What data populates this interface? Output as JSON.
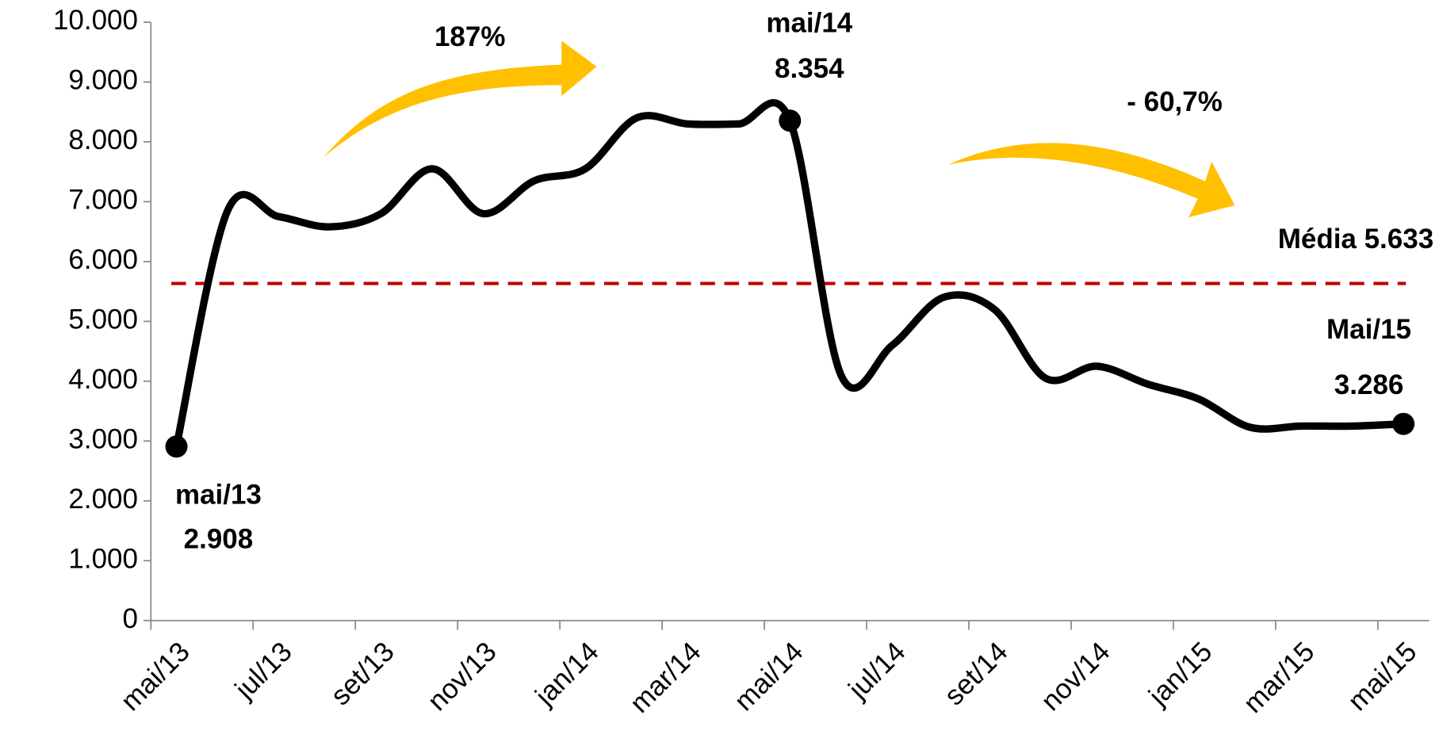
{
  "chart_data": {
    "type": "line",
    "categories": [
      "mai/13",
      null,
      "jul/13",
      null,
      "set/13",
      null,
      "nov/13",
      null,
      "jan/14",
      null,
      "mar/14",
      null,
      "mai/14",
      null,
      "jul/14",
      null,
      "set/14",
      null,
      "nov/14",
      null,
      "jan/15",
      null,
      "mar/15",
      null,
      "mai/15"
    ],
    "series": [
      {
        "color": "#000000",
        "values": [
          2908,
          6850,
          6750,
          6580,
          6800,
          7550,
          6800,
          7350,
          7550,
          8400,
          8300,
          8300,
          8354,
          4100,
          4600,
          5400,
          5200,
          4050,
          4250,
          3950,
          3700,
          3230,
          3250,
          3250,
          3286
        ],
        "value_labels": [
          "2.908",
          null,
          null,
          null,
          null,
          null,
          null,
          null,
          null,
          null,
          null,
          null,
          "8.354",
          null,
          null,
          null,
          null,
          null,
          null,
          null,
          null,
          null,
          null,
          null,
          "3.286"
        ]
      }
    ],
    "ylim": [
      0,
      10000
    ],
    "yticks": [
      0,
      {
        "value": 1000,
        "label": "1.000"
      },
      {
        "value": 2000,
        "label": "2.000"
      },
      {
        "value": 3000,
        "label": "3.000"
      },
      {
        "value": 4000,
        "label": "4.000"
      },
      {
        "value": 5000,
        "label": "5.000"
      },
      {
        "value": 6000,
        "label": "6.000"
      },
      {
        "value": 7000,
        "label": "7.000"
      },
      {
        "value": 8000,
        "label": "8.000"
      },
      {
        "value": 9000,
        "label": "9.000"
      },
      {
        "value": 10000,
        "label": "10.000"
      }
    ],
    "average": {
      "value": 5633,
      "label": "Média 5.633",
      "color": "#c00000"
    },
    "annotations": [
      "mai/13",
      "mai/14",
      "Mai/15",
      "187%",
      "- 60,7%"
    ],
    "arrow_color": "#ffc000"
  }
}
